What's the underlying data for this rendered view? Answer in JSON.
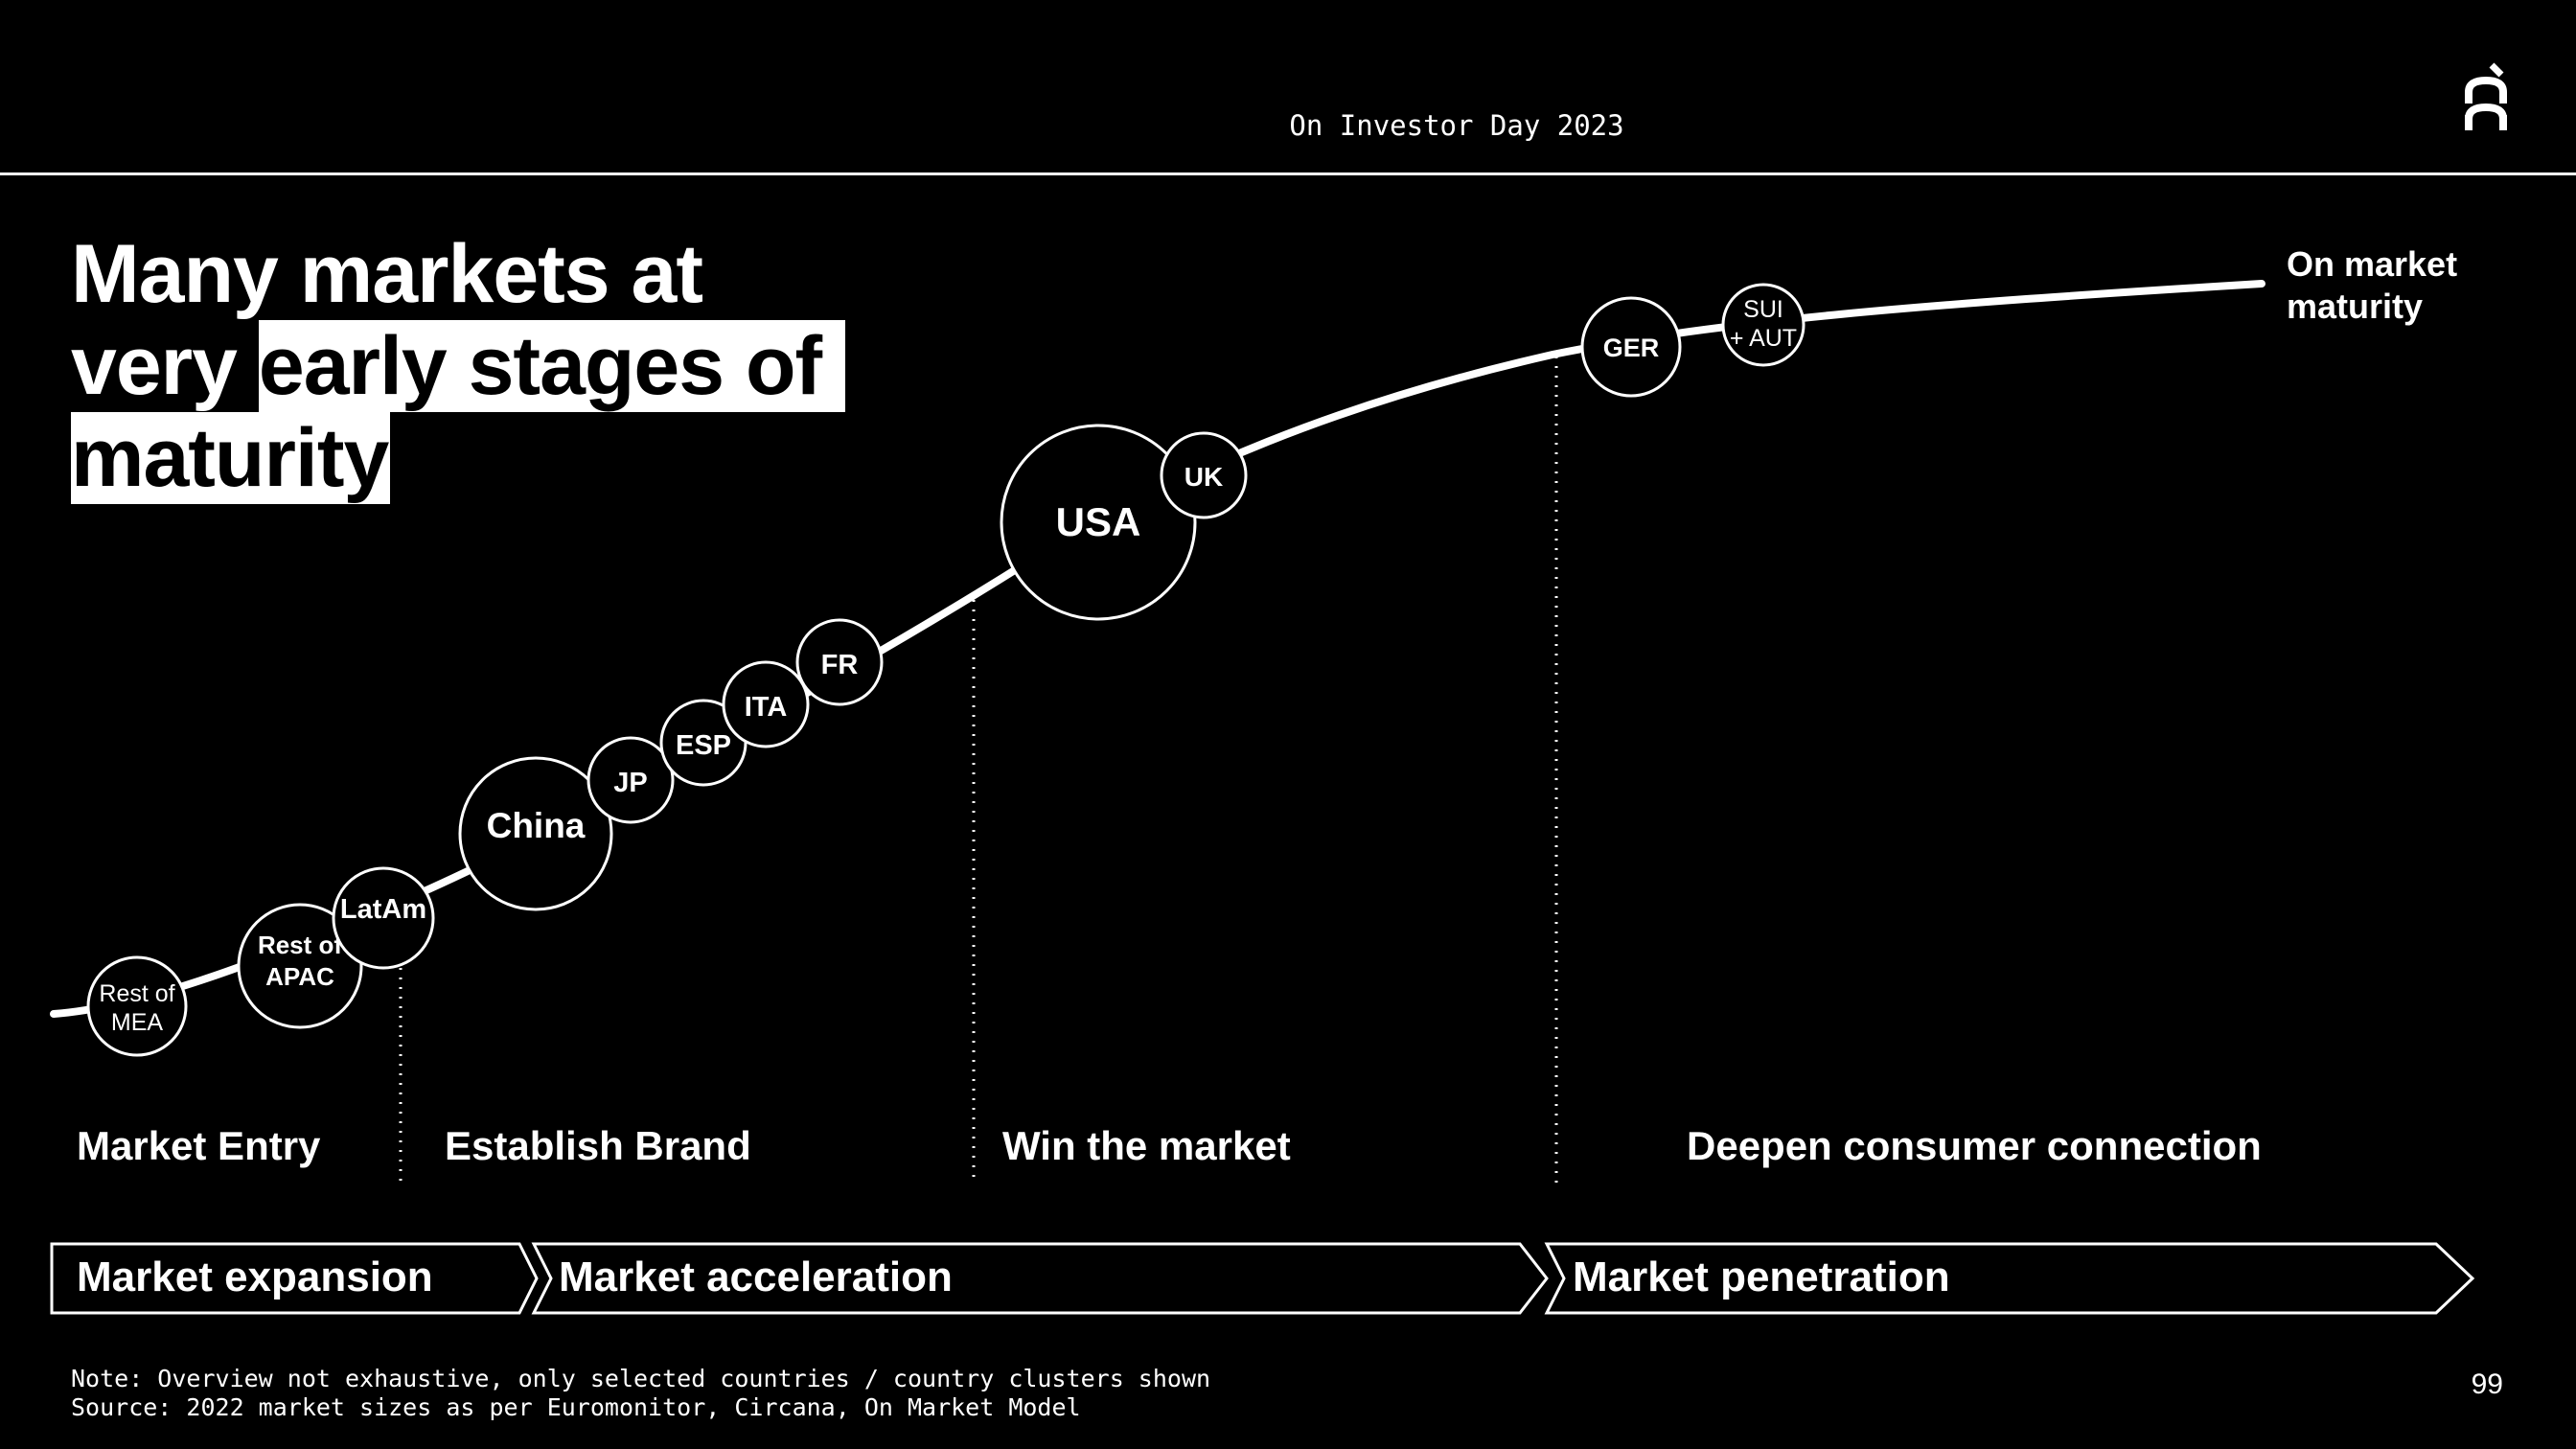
{
  "header": {
    "event": "On Investor Day 2023",
    "logo": "on-logo-icon"
  },
  "title": {
    "line1": "Many markets at",
    "line2_plain": "very ",
    "line2_highlight": "early stages of ",
    "line3_highlight": "maturity"
  },
  "curve_end_label": {
    "line1": "On market",
    "line2": "maturity"
  },
  "markets": [
    {
      "id": "rest-of-mea",
      "line1": "Rest of",
      "line2": "MEA"
    },
    {
      "id": "rest-of-apac",
      "line1": "Rest of",
      "line2": "APAC"
    },
    {
      "id": "latam",
      "line1": "LatAm",
      "line2": ""
    },
    {
      "id": "china",
      "line1": "China",
      "line2": ""
    },
    {
      "id": "jp",
      "line1": "JP",
      "line2": ""
    },
    {
      "id": "esp",
      "line1": "ESP",
      "line2": ""
    },
    {
      "id": "ita",
      "line1": "ITA",
      "line2": ""
    },
    {
      "id": "fr",
      "line1": "FR",
      "line2": ""
    },
    {
      "id": "usa",
      "line1": "USA",
      "line2": ""
    },
    {
      "id": "uk",
      "line1": "UK",
      "line2": ""
    },
    {
      "id": "ger",
      "line1": "GER",
      "line2": ""
    },
    {
      "id": "sui-aut",
      "line1": "SUI",
      "line2": "+ AUT"
    }
  ],
  "stages": [
    "Market Entry",
    "Establish Brand",
    "Win the market",
    "Deepen consumer connection"
  ],
  "phases": [
    "Market expansion",
    "Market acceleration",
    "Market penetration"
  ],
  "footer": {
    "note": "Note: Overview not exhaustive, only selected countries / country clusters shown",
    "source": "Source: 2022 market sizes as per Euromonitor, Circana, On Market Model",
    "page": "99"
  },
  "colors": {
    "background": "#000000",
    "foreground": "#ffffff"
  }
}
